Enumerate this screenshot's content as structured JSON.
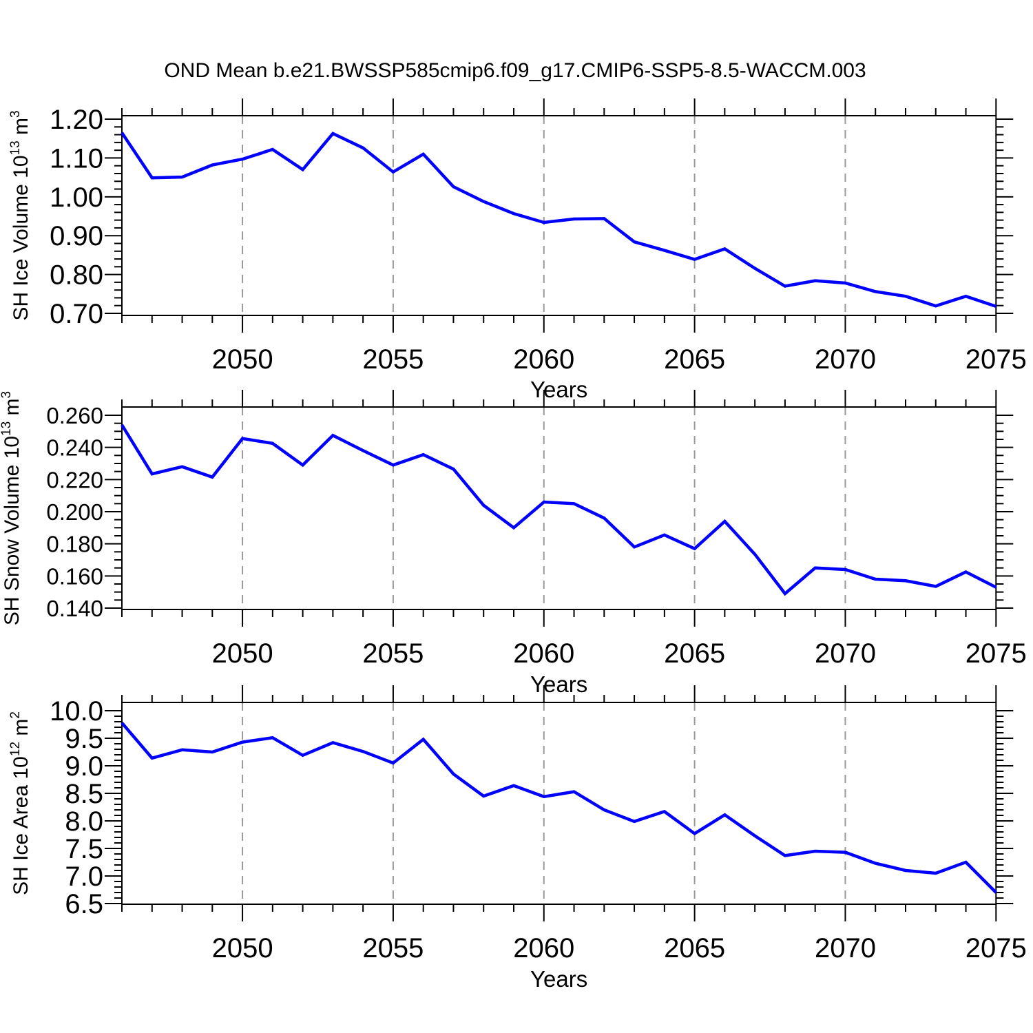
{
  "title": "OND Mean b.e21.BWSSP585cmip6.f09_g17.CMIP6-SSP5-8.5-WACCM.003",
  "colors": {
    "line": "#0000ff",
    "grid": "#999999",
    "frame": "#000000",
    "text": "#000000"
  },
  "chart_data": [
    {
      "type": "line",
      "name": "sh-ice-volume",
      "ylabel_plain": "SH Ice Volume 10^13 m^3",
      "ylabel_parts": [
        {
          "t": "SH Ice Volume 10"
        },
        {
          "t": "13",
          "sup": true
        },
        {
          "t": " m"
        },
        {
          "t": "3",
          "sup": true
        }
      ],
      "xlabel": "Years",
      "x_years": [
        2046,
        2047,
        2048,
        2049,
        2050,
        2051,
        2052,
        2053,
        2054,
        2055,
        2056,
        2057,
        2058,
        2059,
        2060,
        2061,
        2062,
        2063,
        2064,
        2065,
        2066,
        2067,
        2068,
        2069,
        2070,
        2071,
        2072,
        2073,
        2074,
        2075
      ],
      "values": [
        1.165,
        1.049,
        1.051,
        1.082,
        1.097,
        1.122,
        1.07,
        1.163,
        1.126,
        1.064,
        1.11,
        1.026,
        0.988,
        0.957,
        0.934,
        0.943,
        0.944,
        0.884,
        0.862,
        0.839,
        0.866,
        0.816,
        0.77,
        0.784,
        0.778,
        0.756,
        0.744,
        0.719,
        0.744,
        0.718
      ],
      "ylim": [
        0.6947,
        1.2089
      ],
      "ytick_values": [
        1.2,
        1.1,
        1.0,
        0.9,
        0.8,
        0.7
      ],
      "ytick_labels": [
        "1.20",
        "1.10",
        "1.00",
        "0.90",
        "0.80",
        "0.70"
      ],
      "y_minor_step": 0.02,
      "xlim": [
        2046,
        2075
      ],
      "xtick_values": [
        2050,
        2055,
        2060,
        2065,
        2070,
        2075
      ],
      "xtick_labels": [
        "2050",
        "2055",
        "2060",
        "2065",
        "2070",
        "2075"
      ],
      "x_minor_step": 1,
      "gridline_years": [
        2050,
        2055,
        2060,
        2065,
        2070
      ]
    },
    {
      "type": "line",
      "name": "sh-snow-volume",
      "ylabel_plain": "SH Snow Volume 10^13 m^3",
      "ylabel_parts": [
        {
          "t": "SH Snow Volume 10"
        },
        {
          "t": "13",
          "sup": true
        },
        {
          "t": " m"
        },
        {
          "t": "3",
          "sup": true
        }
      ],
      "xlabel": "Years",
      "x_years": [
        2046,
        2047,
        2048,
        2049,
        2050,
        2051,
        2052,
        2053,
        2054,
        2055,
        2056,
        2057,
        2058,
        2059,
        2060,
        2061,
        2062,
        2063,
        2064,
        2065,
        2066,
        2067,
        2068,
        2069,
        2070,
        2071,
        2072,
        2073,
        2074,
        2075
      ],
      "values": [
        0.254,
        0.2235,
        0.228,
        0.2215,
        0.2455,
        0.2425,
        0.229,
        0.2475,
        0.238,
        0.229,
        0.2355,
        0.2265,
        0.204,
        0.19,
        0.206,
        0.205,
        0.196,
        0.178,
        0.1855,
        0.177,
        0.194,
        0.1735,
        0.149,
        0.165,
        0.164,
        0.158,
        0.157,
        0.1535,
        0.1625,
        0.153
      ],
      "ylim": [
        0.13914,
        0.26514
      ],
      "ytick_values": [
        0.26,
        0.24,
        0.22,
        0.2,
        0.18,
        0.16,
        0.14
      ],
      "ytick_labels": [
        "0.260",
        "0.240",
        "0.220",
        "0.200",
        "0.180",
        "0.160",
        "0.140"
      ],
      "y_minor_step": 0.005,
      "xlim": [
        2046,
        2075
      ],
      "xtick_values": [
        2050,
        2055,
        2060,
        2065,
        2070,
        2075
      ],
      "xtick_labels": [
        "2050",
        "2055",
        "2060",
        "2065",
        "2070",
        "2075"
      ],
      "x_minor_step": 1,
      "gridline_years": [
        2050,
        2055,
        2060,
        2065,
        2070
      ]
    },
    {
      "type": "line",
      "name": "sh-ice-area",
      "ylabel_plain": "SH Ice Area 10^12 m^2",
      "ylabel_parts": [
        {
          "t": "SH Ice Area 10"
        },
        {
          "t": "12",
          "sup": true
        },
        {
          "t": " m"
        },
        {
          "t": "2",
          "sup": true
        }
      ],
      "xlabel": "Years",
      "x_years": [
        2046,
        2047,
        2048,
        2049,
        2050,
        2051,
        2052,
        2053,
        2054,
        2055,
        2056,
        2057,
        2058,
        2059,
        2060,
        2061,
        2062,
        2063,
        2064,
        2065,
        2066,
        2067,
        2068,
        2069,
        2070,
        2071,
        2072,
        2073,
        2074,
        2075
      ],
      "values": [
        9.78,
        9.14,
        9.29,
        9.25,
        9.43,
        9.51,
        9.19,
        9.42,
        9.26,
        9.05,
        9.48,
        8.85,
        8.45,
        8.64,
        8.44,
        8.53,
        8.2,
        7.99,
        8.17,
        7.77,
        8.11,
        7.73,
        7.37,
        7.45,
        7.43,
        7.23,
        7.1,
        7.05,
        7.25,
        6.7
      ],
      "ylim": [
        6.4875,
        10.15
      ],
      "ytick_values": [
        10.0,
        9.5,
        9.0,
        8.5,
        8.0,
        7.5,
        7.0,
        6.5
      ],
      "ytick_labels": [
        "10.0",
        "9.5",
        "9.0",
        "8.5",
        "8.0",
        "7.5",
        "7.0",
        "6.5"
      ],
      "y_minor_step": 0.1,
      "xlim": [
        2046,
        2075
      ],
      "xtick_values": [
        2050,
        2055,
        2060,
        2065,
        2070,
        2075
      ],
      "xtick_labels": [
        "2050",
        "2055",
        "2060",
        "2065",
        "2070",
        "2075"
      ],
      "x_minor_step": 1,
      "gridline_years": [
        2050,
        2055,
        2060,
        2065,
        2070
      ]
    }
  ]
}
